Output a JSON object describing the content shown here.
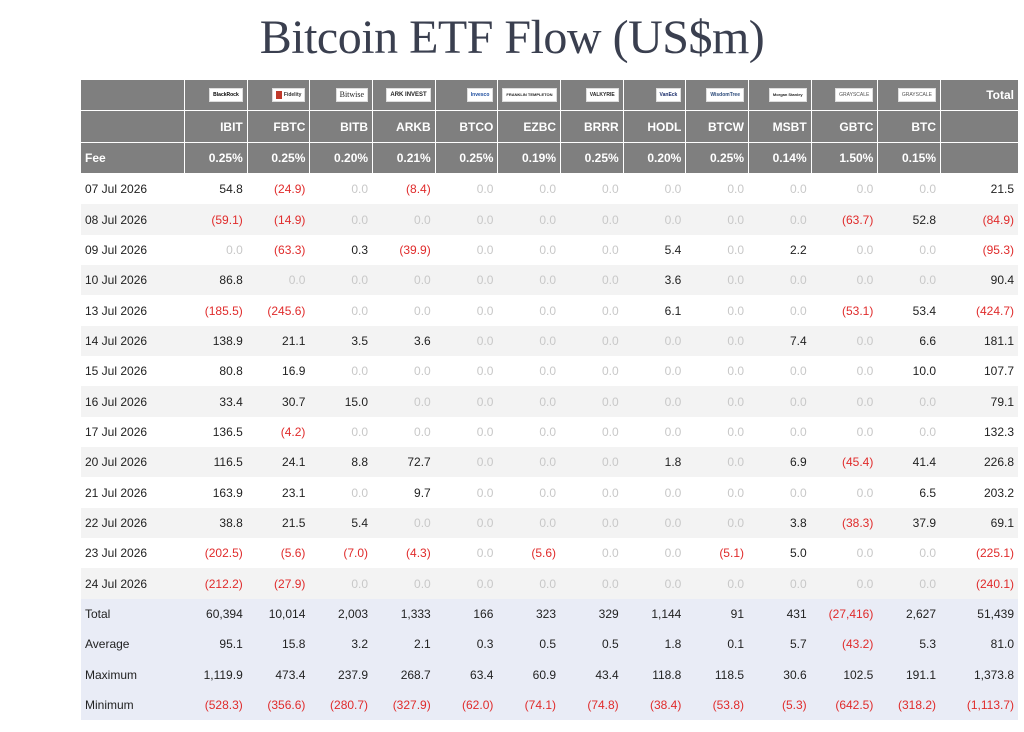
{
  "title": "Bitcoin ETF Flow (US$m)",
  "colors": {
    "header_bg": "#7f7f7f",
    "negative": "#e02b2b",
    "zero": "#c8c8c8",
    "summary_bg": "#e9ecf6"
  },
  "header": {
    "total_label": "Total",
    "fee_label": "Fee",
    "logos": [
      "BlackRock",
      "Fidelity",
      "Bitwise",
      "ARK INVEST",
      "Invesco",
      "FRANKLIN TEMPLETON",
      "VALKYRIE",
      "VanEck",
      "WisdomTree",
      "Morgan Stanley",
      "GRAYSCALE",
      "GRAYSCALE"
    ],
    "tickers": [
      "IBIT",
      "FBTC",
      "BITB",
      "ARKB",
      "BTCO",
      "EZBC",
      "BRRR",
      "HODL",
      "BTCW",
      "MSBT",
      "GBTC",
      "BTC"
    ],
    "fees": [
      "0.25%",
      "0.25%",
      "0.20%",
      "0.21%",
      "0.25%",
      "0.19%",
      "0.25%",
      "0.20%",
      "0.25%",
      "0.14%",
      "1.50%",
      "0.15%"
    ]
  },
  "chart_data": {
    "type": "table",
    "title": "Bitcoin ETF Flow (US$m)",
    "columns": [
      "IBIT",
      "FBTC",
      "BITB",
      "ARKB",
      "BTCO",
      "EZBC",
      "BRRR",
      "HODL",
      "BTCW",
      "MSBT",
      "GBTC",
      "BTC",
      "Total"
    ],
    "rows": [
      {
        "date": "07 Jul 2026",
        "values": [
          "54.8",
          "(24.9)",
          "0.0",
          "(8.4)",
          "0.0",
          "0.0",
          "0.0",
          "0.0",
          "0.0",
          "0.0",
          "0.0",
          "0.0",
          "21.5"
        ]
      },
      {
        "date": "08 Jul 2026",
        "values": [
          "(59.1)",
          "(14.9)",
          "0.0",
          "0.0",
          "0.0",
          "0.0",
          "0.0",
          "0.0",
          "0.0",
          "0.0",
          "(63.7)",
          "52.8",
          "(84.9)"
        ]
      },
      {
        "date": "09 Jul 2026",
        "values": [
          "0.0",
          "(63.3)",
          "0.3",
          "(39.9)",
          "0.0",
          "0.0",
          "0.0",
          "5.4",
          "0.0",
          "2.2",
          "0.0",
          "0.0",
          "(95.3)"
        ]
      },
      {
        "date": "10 Jul 2026",
        "values": [
          "86.8",
          "0.0",
          "0.0",
          "0.0",
          "0.0",
          "0.0",
          "0.0",
          "3.6",
          "0.0",
          "0.0",
          "0.0",
          "0.0",
          "90.4"
        ]
      },
      {
        "date": "13 Jul 2026",
        "values": [
          "(185.5)",
          "(245.6)",
          "0.0",
          "0.0",
          "0.0",
          "0.0",
          "0.0",
          "6.1",
          "0.0",
          "0.0",
          "(53.1)",
          "53.4",
          "(424.7)"
        ]
      },
      {
        "date": "14 Jul 2026",
        "values": [
          "138.9",
          "21.1",
          "3.5",
          "3.6",
          "0.0",
          "0.0",
          "0.0",
          "0.0",
          "0.0",
          "7.4",
          "0.0",
          "6.6",
          "181.1"
        ]
      },
      {
        "date": "15 Jul 2026",
        "values": [
          "80.8",
          "16.9",
          "0.0",
          "0.0",
          "0.0",
          "0.0",
          "0.0",
          "0.0",
          "0.0",
          "0.0",
          "0.0",
          "10.0",
          "107.7"
        ]
      },
      {
        "date": "16 Jul 2026",
        "values": [
          "33.4",
          "30.7",
          "15.0",
          "0.0",
          "0.0",
          "0.0",
          "0.0",
          "0.0",
          "0.0",
          "0.0",
          "0.0",
          "0.0",
          "79.1"
        ]
      },
      {
        "date": "17 Jul 2026",
        "values": [
          "136.5",
          "(4.2)",
          "0.0",
          "0.0",
          "0.0",
          "0.0",
          "0.0",
          "0.0",
          "0.0",
          "0.0",
          "0.0",
          "0.0",
          "132.3"
        ]
      },
      {
        "date": "20 Jul 2026",
        "values": [
          "116.5",
          "24.1",
          "8.8",
          "72.7",
          "0.0",
          "0.0",
          "0.0",
          "1.8",
          "0.0",
          "6.9",
          "(45.4)",
          "41.4",
          "226.8"
        ]
      },
      {
        "date": "21 Jul 2026",
        "values": [
          "163.9",
          "23.1",
          "0.0",
          "9.7",
          "0.0",
          "0.0",
          "0.0",
          "0.0",
          "0.0",
          "0.0",
          "0.0",
          "6.5",
          "203.2"
        ]
      },
      {
        "date": "22 Jul 2026",
        "values": [
          "38.8",
          "21.5",
          "5.4",
          "0.0",
          "0.0",
          "0.0",
          "0.0",
          "0.0",
          "0.0",
          "3.8",
          "(38.3)",
          "37.9",
          "69.1"
        ]
      },
      {
        "date": "23 Jul 2026",
        "values": [
          "(202.5)",
          "(5.6)",
          "(7.0)",
          "(4.3)",
          "0.0",
          "(5.6)",
          "0.0",
          "0.0",
          "(5.1)",
          "5.0",
          "0.0",
          "0.0",
          "(225.1)"
        ]
      },
      {
        "date": "24 Jul 2026",
        "values": [
          "(212.2)",
          "(27.9)",
          "0.0",
          "0.0",
          "0.0",
          "0.0",
          "0.0",
          "0.0",
          "0.0",
          "0.0",
          "0.0",
          "0.0",
          "(240.1)"
        ]
      }
    ],
    "summary": [
      {
        "label": "Total",
        "values": [
          "60,394",
          "10,014",
          "2,003",
          "1,333",
          "166",
          "323",
          "329",
          "1,144",
          "91",
          "431",
          "(27,416)",
          "2,627",
          "51,439"
        ]
      },
      {
        "label": "Average",
        "values": [
          "95.1",
          "15.8",
          "3.2",
          "2.1",
          "0.3",
          "0.5",
          "0.5",
          "1.8",
          "0.1",
          "5.7",
          "(43.2)",
          "5.3",
          "81.0"
        ]
      },
      {
        "label": "Maximum",
        "values": [
          "1,119.9",
          "473.4",
          "237.9",
          "268.7",
          "63.4",
          "60.9",
          "43.4",
          "118.8",
          "118.5",
          "30.6",
          "102.5",
          "191.1",
          "1,373.8"
        ]
      },
      {
        "label": "Minimum",
        "values": [
          "(528.3)",
          "(356.6)",
          "(280.7)",
          "(327.9)",
          "(62.0)",
          "(74.1)",
          "(74.8)",
          "(38.4)",
          "(53.8)",
          "(5.3)",
          "(642.5)",
          "(318.2)",
          "(1,113.7)"
        ]
      }
    ]
  }
}
